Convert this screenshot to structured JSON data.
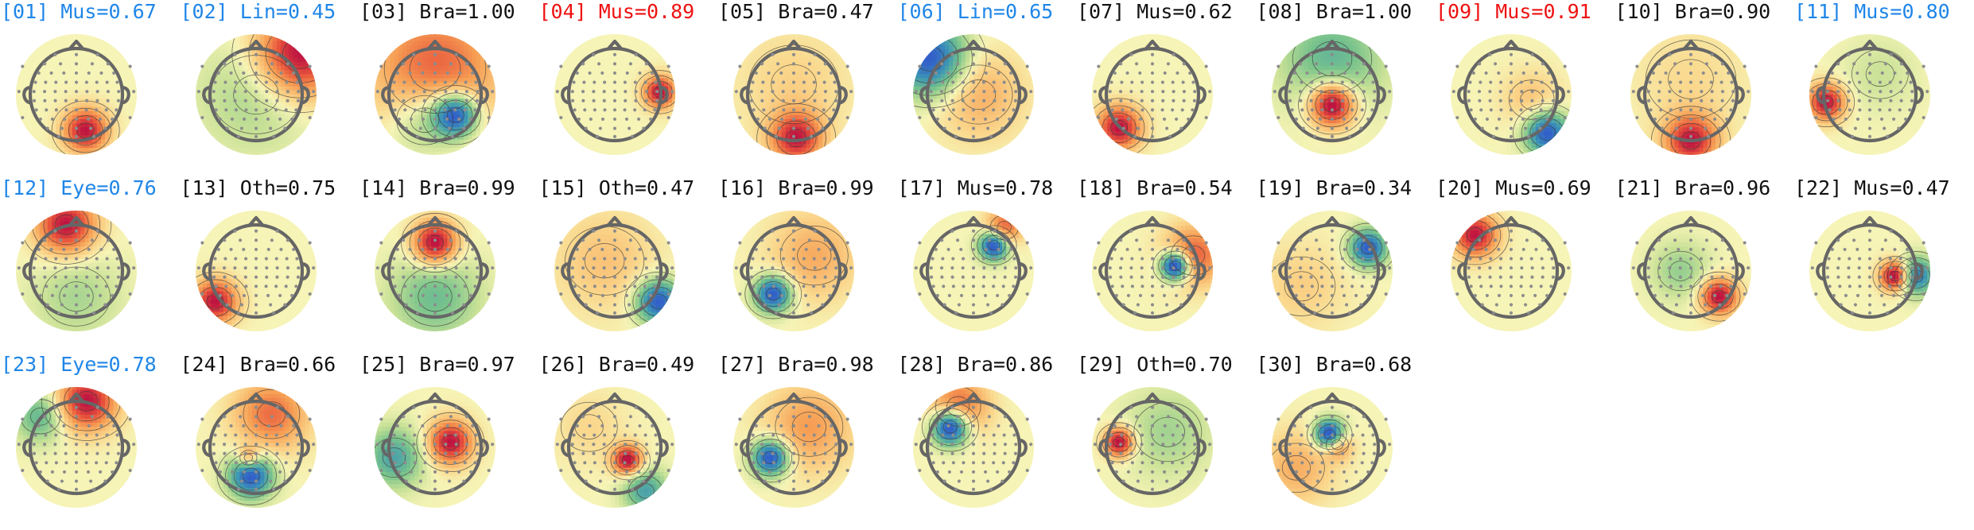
{
  "colors": {
    "black": "#111111",
    "blue": "#1f86e8",
    "red": "#ee1111",
    "head_outline": "#666666",
    "electrode": "#8c8c8c",
    "contour": "#3a3a3a"
  },
  "panels": [
    {
      "label": "[01] Mus=0.67",
      "color": "blue",
      "sources": [
        [
          0.18,
          -0.7,
          2.0,
          0.3
        ]
      ]
    },
    {
      "label": "[02] Lin=0.45",
      "color": "blue",
      "sources": [
        [
          0.85,
          0.8,
          2.0,
          0.6
        ],
        [
          0.0,
          0.0,
          -0.5,
          0.8
        ]
      ]
    },
    {
      "label": "[03] Bra=1.00",
      "color": "black",
      "sources": [
        [
          0.0,
          0.5,
          1.2,
          0.9
        ],
        [
          0.4,
          -0.4,
          -2.0,
          0.3
        ],
        [
          -0.2,
          -0.5,
          -0.8,
          0.5
        ]
      ]
    },
    {
      "label": "[04] Mus=0.89",
      "color": "red",
      "sources": [
        [
          0.88,
          0.05,
          2.0,
          0.22
        ]
      ]
    },
    {
      "label": "[05] Bra=0.47",
      "color": "black",
      "sources": [
        [
          0.05,
          -0.85,
          2.0,
          0.35
        ],
        [
          0.0,
          0.2,
          0.4,
          0.8
        ]
      ]
    },
    {
      "label": "[06] Lin=0.65",
      "color": "blue",
      "sources": [
        [
          -0.85,
          0.7,
          -2.0,
          0.5
        ],
        [
          0.1,
          0.0,
          0.7,
          0.6
        ]
      ]
    },
    {
      "label": "[07] Mus=0.62",
      "color": "black",
      "sources": [
        [
          -0.65,
          -0.65,
          2.0,
          0.3
        ]
      ]
    },
    {
      "label": "[08] Bra=1.00",
      "color": "black",
      "sources": [
        [
          0.0,
          -0.2,
          2.0,
          0.3
        ],
        [
          0.0,
          0.7,
          -0.8,
          0.7
        ]
      ]
    },
    {
      "label": "[09] Mus=0.91",
      "color": "red",
      "sources": [
        [
          0.7,
          -0.75,
          -2.0,
          0.3
        ],
        [
          0.4,
          -0.1,
          0.5,
          0.4
        ]
      ]
    },
    {
      "label": "[10] Bra=0.90",
      "color": "black",
      "sources": [
        [
          0.0,
          -0.9,
          2.0,
          0.35
        ],
        [
          0.0,
          0.3,
          0.3,
          0.8
        ]
      ]
    },
    {
      "label": "[11] Mus=0.80",
      "color": "blue",
      "sources": [
        [
          -0.85,
          -0.15,
          2.0,
          0.25
        ],
        [
          0.2,
          0.4,
          -0.3,
          0.5
        ]
      ]
    },
    {
      "label": "[12] Eye=0.76",
      "color": "blue",
      "sources": [
        [
          -0.2,
          0.9,
          2.0,
          0.4
        ],
        [
          0.0,
          -0.5,
          -0.5,
          0.6
        ]
      ]
    },
    {
      "label": "[13] Oth=0.75",
      "color": "black",
      "sources": [
        [
          -0.8,
          -0.6,
          2.0,
          0.3
        ]
      ]
    },
    {
      "label": "[14] Bra=0.99",
      "color": "black",
      "sources": [
        [
          0.0,
          0.55,
          2.0,
          0.3
        ],
        [
          0.0,
          -0.5,
          -0.8,
          0.6
        ]
      ]
    },
    {
      "label": "[15] Oth=0.47",
      "color": "black",
      "sources": [
        [
          0.85,
          -0.6,
          -2.0,
          0.3
        ],
        [
          -0.2,
          0.2,
          0.5,
          0.7
        ]
      ]
    },
    {
      "label": "[16] Bra=0.99",
      "color": "black",
      "sources": [
        [
          -0.4,
          -0.45,
          -2.0,
          0.25
        ],
        [
          0.4,
          0.3,
          0.7,
          0.6
        ]
      ]
    },
    {
      "label": "[17] Mus=0.78",
      "color": "black",
      "sources": [
        [
          0.4,
          0.5,
          -2.0,
          0.2
        ],
        [
          0.6,
          0.85,
          1.2,
          0.25
        ]
      ]
    },
    {
      "label": "[18] Bra=0.54",
      "color": "black",
      "sources": [
        [
          0.45,
          0.1,
          -2.0,
          0.2
        ],
        [
          0.8,
          0.3,
          1.0,
          0.4
        ]
      ]
    },
    {
      "label": "[19] Bra=0.34",
      "color": "black",
      "sources": [
        [
          0.7,
          0.45,
          -2.0,
          0.25
        ],
        [
          -0.6,
          -0.3,
          0.4,
          0.6
        ]
      ]
    },
    {
      "label": "[20] Mus=0.69",
      "color": "black",
      "sources": [
        [
          -0.7,
          0.7,
          2.0,
          0.3
        ]
      ]
    },
    {
      "label": "[21] Bra=0.96",
      "color": "black",
      "sources": [
        [
          0.55,
          -0.5,
          2.0,
          0.25
        ],
        [
          -0.2,
          0.0,
          -0.6,
          0.4
        ]
      ]
    },
    {
      "label": "[22] Mus=0.47",
      "color": "black",
      "sources": [
        [
          0.5,
          -0.1,
          2.0,
          0.2
        ],
        [
          0.9,
          -0.1,
          -1.5,
          0.25
        ]
      ]
    },
    {
      "label": "[23] Eye=0.78",
      "color": "blue",
      "sources": [
        [
          0.2,
          0.9,
          2.0,
          0.4
        ],
        [
          -0.7,
          0.6,
          -1.0,
          0.35
        ]
      ]
    },
    {
      "label": "[24] Bra=0.66",
      "color": "black",
      "sources": [
        [
          0.3,
          0.65,
          1.2,
          0.5
        ],
        [
          -0.1,
          -0.55,
          -2.0,
          0.3
        ],
        [
          -0.15,
          -0.2,
          1.2,
          0.15
        ]
      ]
    },
    {
      "label": "[25] Bra=0.97",
      "color": "black",
      "sources": [
        [
          0.3,
          0.1,
          2.0,
          0.3
        ],
        [
          -0.8,
          -0.2,
          -1.2,
          0.4
        ]
      ]
    },
    {
      "label": "[26] Bra=0.49",
      "color": "black",
      "sources": [
        [
          0.25,
          -0.25,
          2.0,
          0.2
        ],
        [
          0.6,
          -0.85,
          -1.2,
          0.3
        ],
        [
          -0.5,
          0.4,
          0.3,
          0.5
        ]
      ]
    },
    {
      "label": "[27] Bra=0.98",
      "color": "black",
      "sources": [
        [
          -0.45,
          -0.2,
          -2.0,
          0.25
        ],
        [
          0.3,
          0.4,
          0.8,
          0.6
        ]
      ]
    },
    {
      "label": "[28] Bra=0.86",
      "color": "black",
      "sources": [
        [
          -0.45,
          0.4,
          -2.0,
          0.25
        ],
        [
          -0.3,
          0.8,
          1.0,
          0.4
        ]
      ]
    },
    {
      "label": "[29] Oth=0.70",
      "color": "black",
      "sources": [
        [
          -0.65,
          0.1,
          2.0,
          0.2
        ],
        [
          0.3,
          0.3,
          -0.5,
          0.6
        ]
      ]
    },
    {
      "label": "[30] Bra=0.68",
      "color": "black",
      "sources": [
        [
          -0.05,
          0.25,
          -1.8,
          0.2
        ],
        [
          0.1,
          0.05,
          0.8,
          0.2
        ],
        [
          -0.7,
          -0.4,
          0.5,
          0.5
        ]
      ]
    }
  ]
}
